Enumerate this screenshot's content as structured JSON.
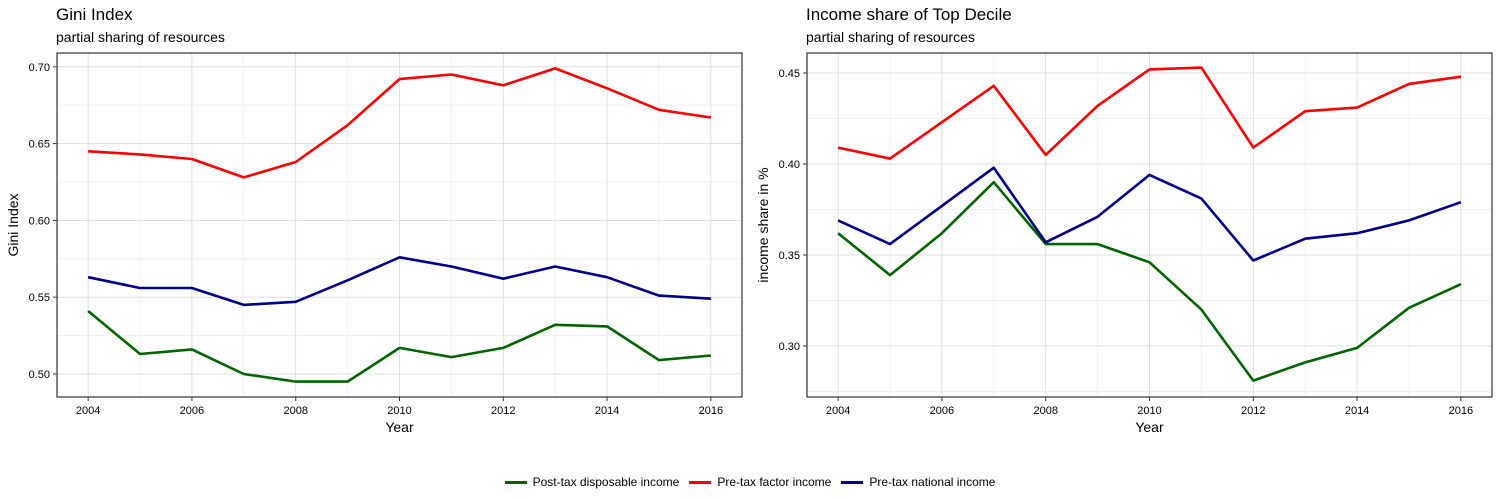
{
  "legend": [
    {
      "label": "Post-tax disposable income",
      "color": "#006400"
    },
    {
      "label": "Pre-tax factor income",
      "color": "#FF0000"
    },
    {
      "label": "Pre-tax national income",
      "color": "#00008B"
    }
  ],
  "chart_data": [
    {
      "type": "line",
      "title": "Gini Index",
      "subtitle": "partial sharing of resources",
      "xlabel": "Year",
      "ylabel": "Gini Index",
      "x": [
        2004,
        2005,
        2006,
        2007,
        2008,
        2009,
        2010,
        2011,
        2012,
        2013,
        2014,
        2015,
        2016
      ],
      "xticks": [
        2004,
        2006,
        2008,
        2010,
        2012,
        2014,
        2016
      ],
      "xtick_labels": [
        "2004",
        "2006",
        "2008",
        "2010",
        "2012",
        "2014",
        "2016"
      ],
      "yticks": [
        0.5,
        0.55,
        0.6,
        0.65,
        0.7
      ],
      "ytick_labels": [
        "0.50",
        "0.55",
        "0.60",
        "0.65",
        "0.70"
      ],
      "xlim": [
        2003.4,
        2016.6
      ],
      "ylim": [
        0.485,
        0.709
      ],
      "grid": true,
      "series": [
        {
          "name": "Post-tax disposable income",
          "color": "#006400",
          "values": [
            0.541,
            0.513,
            0.516,
            0.5,
            0.495,
            0.495,
            0.517,
            0.511,
            0.517,
            0.532,
            0.531,
            0.509,
            0.512
          ]
        },
        {
          "name": "Pre-tax factor income",
          "color": "#FF0000",
          "values": [
            0.645,
            0.643,
            0.64,
            0.628,
            0.638,
            0.662,
            0.692,
            0.695,
            0.688,
            0.699,
            0.686,
            0.672,
            0.667
          ]
        },
        {
          "name": "Pre-tax national income",
          "color": "#00008B",
          "values": [
            0.563,
            0.556,
            0.556,
            0.545,
            0.547,
            0.561,
            0.576,
            0.57,
            0.562,
            0.57,
            0.563,
            0.551,
            0.549
          ]
        }
      ]
    },
    {
      "type": "line",
      "title": "Income share of Top Decile",
      "subtitle": "partial sharing of resources",
      "xlabel": "Year",
      "ylabel": "income share in %",
      "x": [
        2004,
        2005,
        2006,
        2007,
        2008,
        2009,
        2010,
        2011,
        2012,
        2013,
        2014,
        2015,
        2016
      ],
      "xticks": [
        2004,
        2006,
        2008,
        2010,
        2012,
        2014,
        2016
      ],
      "xtick_labels": [
        "2004",
        "2006",
        "2008",
        "2010",
        "2012",
        "2014",
        "2016"
      ],
      "yticks": [
        0.3,
        0.35,
        0.4,
        0.45
      ],
      "ytick_labels": [
        "0.30",
        "0.35",
        "0.40",
        "0.45"
      ],
      "xlim": [
        2003.4,
        2016.6
      ],
      "ylim": [
        0.272,
        0.461
      ],
      "grid": true,
      "series": [
        {
          "name": "Post-tax disposable income",
          "color": "#006400",
          "values": [
            0.362,
            0.339,
            0.362,
            0.39,
            0.356,
            0.356,
            0.346,
            0.32,
            0.281,
            0.291,
            0.299,
            0.321,
            0.334
          ]
        },
        {
          "name": "Pre-tax factor income",
          "color": "#FF0000",
          "values": [
            0.409,
            0.403,
            0.423,
            0.443,
            0.405,
            0.432,
            0.452,
            0.453,
            0.409,
            0.429,
            0.431,
            0.444,
            0.448
          ]
        },
        {
          "name": "Pre-tax national income",
          "color": "#00008B",
          "values": [
            0.369,
            0.356,
            0.377,
            0.398,
            0.357,
            0.371,
            0.394,
            0.381,
            0.347,
            0.359,
            0.362,
            0.369,
            0.379
          ]
        }
      ]
    }
  ]
}
